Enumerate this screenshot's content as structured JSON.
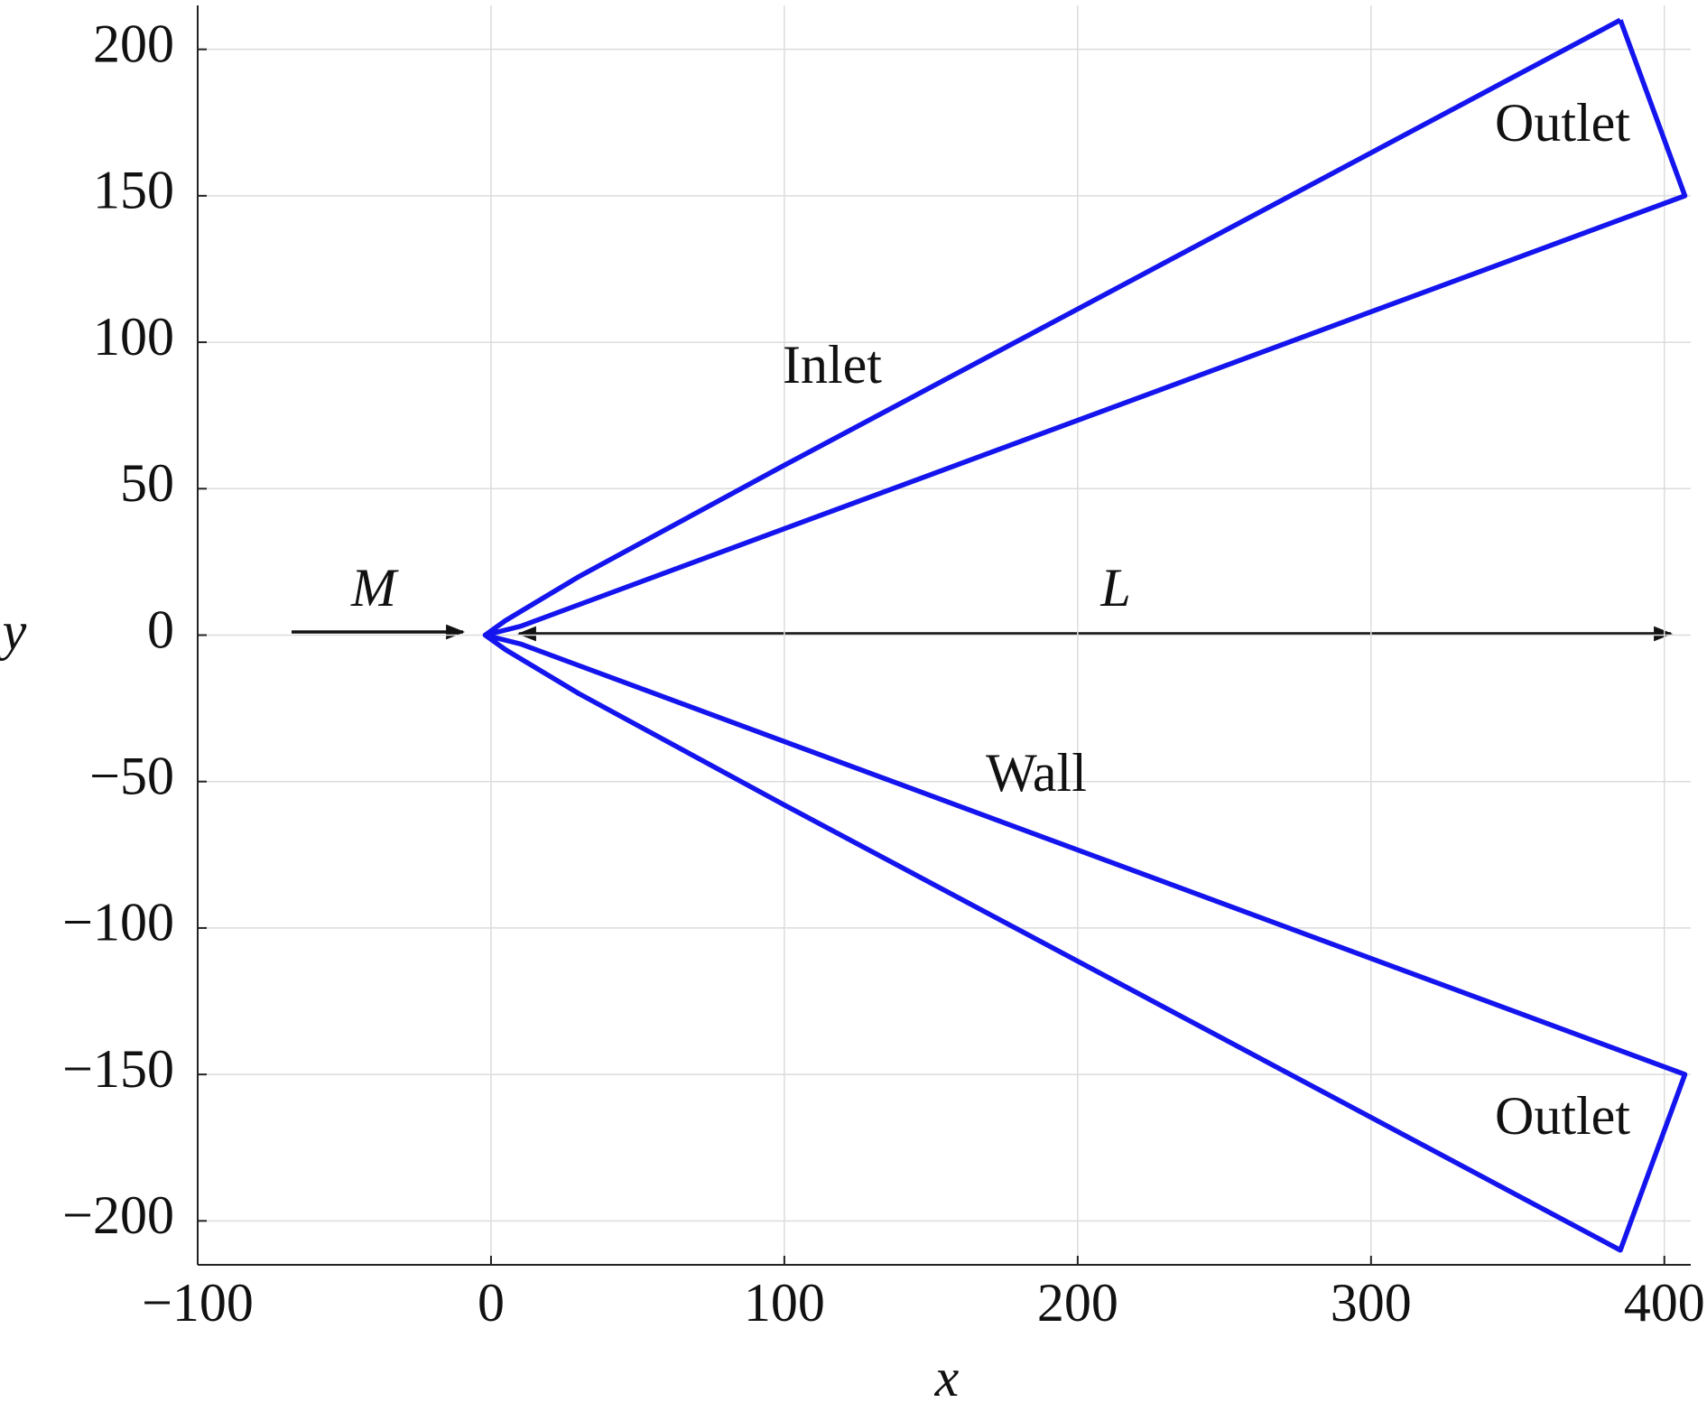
{
  "chart_data": {
    "type": "line",
    "x": [
      385,
      407,
      10,
      2,
      -2,
      2,
      10,
      407,
      385,
      100,
      30,
      5,
      -2,
      5,
      30,
      100,
      385
    ],
    "series": [
      {
        "color": "#1414ee",
        "values": [
          210,
          150,
          3,
          1,
          0,
          -1,
          -3,
          -150,
          -210,
          -58,
          -20,
          -5,
          0,
          5,
          20,
          58,
          210
        ]
      }
    ],
    "xlim": [
      -100,
      409
    ],
    "ylim": [
      -215,
      215
    ],
    "xticks": [
      {
        "value": -100,
        "label": "−100"
      },
      0,
      100,
      200,
      300,
      400
    ],
    "yticks": [
      {
        "value": -200,
        "label": "−200"
      },
      {
        "value": -150,
        "label": "−150"
      },
      {
        "value": -100,
        "label": "−100"
      },
      {
        "value": -50,
        "label": "−50"
      },
      0,
      50,
      100,
      150,
      200
    ],
    "xlabel": "x",
    "ylabel": "y",
    "grid": true,
    "annotations": [
      "Inlet",
      "Wall",
      "Outlet",
      "Outlet",
      "M",
      "L"
    ]
  }
}
